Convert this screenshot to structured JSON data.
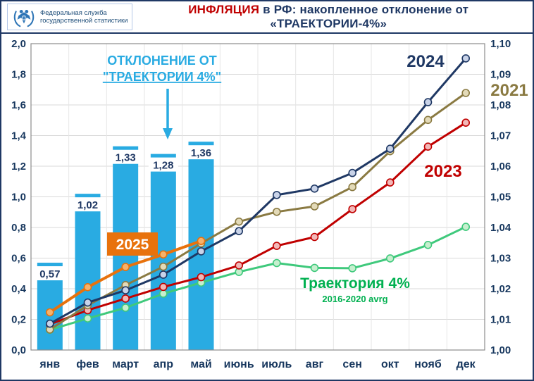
{
  "header": {
    "logo": {
      "line1": "Федеральная служба",
      "line2": "государственной статистики"
    },
    "title_accent": "ИНФЛЯЦИЯ",
    "title_rest": " в РФ: накопленное отклонение от «ТРАЕКТОРИИ-4%»"
  },
  "chart_data": {
    "type": "combo-bar-line",
    "title": "ИНФЛЯЦИЯ в РФ: накопленное отклонение от «ТРАЕКТОРИИ-4%»",
    "categories": [
      "янв",
      "фев",
      "март",
      "апр",
      "май",
      "июнь",
      "июль",
      "авг",
      "сен",
      "окт",
      "нояб",
      "дек"
    ],
    "grid": true,
    "legend_position": "inline-labels",
    "left_axis": {
      "min": 0,
      "max": 2,
      "step": 0.2,
      "ticks": [
        "0,0",
        "0,2",
        "0,4",
        "0,6",
        "0,8",
        "1,0",
        "1,2",
        "1,4",
        "1,6",
        "1,8",
        "2,0"
      ]
    },
    "right_axis": {
      "min": 1.0,
      "max": 1.1,
      "step": 0.01,
      "ticks": [
        "1,00",
        "1,01",
        "1,02",
        "1,03",
        "1,04",
        "1,05",
        "1,06",
        "1,07",
        "1,08",
        "1,09",
        "1,10"
      ]
    },
    "bars": {
      "name": "2025",
      "axis": "left",
      "color": "#29ABE2",
      "values": [
        0.57,
        1.02,
        1.33,
        1.28,
        1.36
      ],
      "labels": [
        "0,57",
        "1,02",
        "1,33",
        "1,28",
        "1,36"
      ]
    },
    "series": [
      {
        "name": "Траектория 4%",
        "note": "2016-2020 avrg",
        "axis": "right",
        "color": "#3FC97C",
        "label_color": "#00B050",
        "marker_fill": "#C6EFCE",
        "values": [
          1.0066,
          1.0103,
          1.0138,
          1.0184,
          1.022,
          1.0255,
          1.0284,
          1.0268,
          1.0267,
          1.0299,
          1.0343,
          1.0402
        ]
      },
      {
        "name": "2023",
        "axis": "right",
        "color": "#C00000",
        "label_color": "#C00000",
        "marker_fill": "#F2B8B8",
        "values": [
          1.0084,
          1.013,
          1.0168,
          1.0206,
          1.0238,
          1.0276,
          1.034,
          1.0369,
          1.046,
          1.0547,
          1.0664,
          1.0742
        ]
      },
      {
        "name": "2021",
        "axis": "right",
        "color": "#8A7A42",
        "label_color": "#8A7A42",
        "marker_fill": "#E3DAB8",
        "values": [
          1.0067,
          1.0146,
          1.0212,
          1.0272,
          1.0348,
          1.0419,
          1.0451,
          1.0469,
          1.0532,
          1.0649,
          1.0751,
          1.0839
        ]
      },
      {
        "name": "2024",
        "axis": "right",
        "color": "#1F3864",
        "label_color": "#1F3864",
        "marker_fill": "#C9D3E8",
        "values": [
          1.0086,
          1.0155,
          1.0195,
          1.0246,
          1.0322,
          1.0388,
          1.0506,
          1.0527,
          1.0578,
          1.0657,
          1.0809,
          1.0952
        ]
      },
      {
        "name": "2025",
        "axis": "right",
        "color": "#E8720C",
        "label_color": "#FFFFFF",
        "marker_fill": "#F6B26B",
        "width": 4,
        "values": [
          1.0123,
          1.0205,
          1.0271,
          1.0312,
          1.0356
        ]
      }
    ],
    "annotation": {
      "line1": "ОТКЛОНЕНИЕ ОТ",
      "line2": "\"ТРАЕКТОРИИ 4%\""
    }
  }
}
